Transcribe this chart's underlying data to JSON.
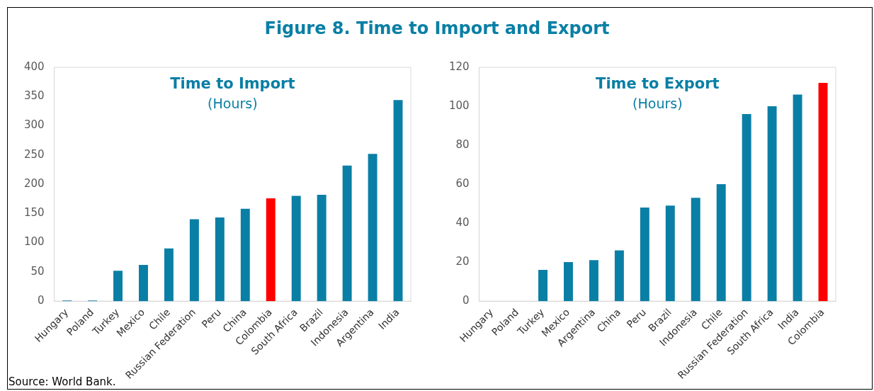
{
  "chart_data": [
    {
      "type": "bar",
      "title": "Time to Import",
      "subtitle": "(Hours)",
      "categories": [
        "Hungary",
        "Poland",
        "Turkey",
        "Mexico",
        "Chile",
        "Russian Federation",
        "Peru",
        "China",
        "Colombia",
        "South Africa",
        "Brazil",
        "Indonesia",
        "Argentina",
        "India"
      ],
      "values": [
        1,
        1,
        52,
        62,
        90,
        140,
        143,
        158,
        176,
        180,
        182,
        232,
        252,
        344
      ],
      "colors": [
        "#0a7fa5",
        "#0a7fa5",
        "#0a7fa5",
        "#0a7fa5",
        "#0a7fa5",
        "#0a7fa5",
        "#0a7fa5",
        "#0a7fa5",
        "#ff0000",
        "#0a7fa5",
        "#0a7fa5",
        "#0a7fa5",
        "#0a7fa5",
        "#0a7fa5"
      ],
      "ylim": [
        0,
        400
      ],
      "yticks": [
        0,
        50,
        100,
        150,
        200,
        250,
        300,
        350,
        400
      ],
      "grid": false,
      "legend": false,
      "annotations": [
        "Figure 8. Time to Import and Export",
        "Source: World Bank."
      ]
    },
    {
      "type": "bar",
      "title": "Time to Export",
      "subtitle": "(Hours)",
      "categories": [
        "Hungary",
        "Poland",
        "Turkey",
        "Mexico",
        "Argentina",
        "China",
        "Peru",
        "Brazil",
        "Indonesia",
        "Chile",
        "Russian Federation",
        "South Africa",
        "India",
        "Colombia"
      ],
      "values": [
        0,
        0,
        16,
        20,
        21,
        26,
        48,
        49,
        53,
        60,
        96,
        100,
        106,
        112
      ],
      "colors": [
        "#0a7fa5",
        "#0a7fa5",
        "#0a7fa5",
        "#0a7fa5",
        "#0a7fa5",
        "#0a7fa5",
        "#0a7fa5",
        "#0a7fa5",
        "#0a7fa5",
        "#0a7fa5",
        "#0a7fa5",
        "#0a7fa5",
        "#0a7fa5",
        "#ff0000"
      ],
      "ylim": [
        0,
        120
      ],
      "yticks": [
        0,
        20,
        40,
        60,
        80,
        100,
        120
      ],
      "grid": false,
      "legend": false
    }
  ]
}
